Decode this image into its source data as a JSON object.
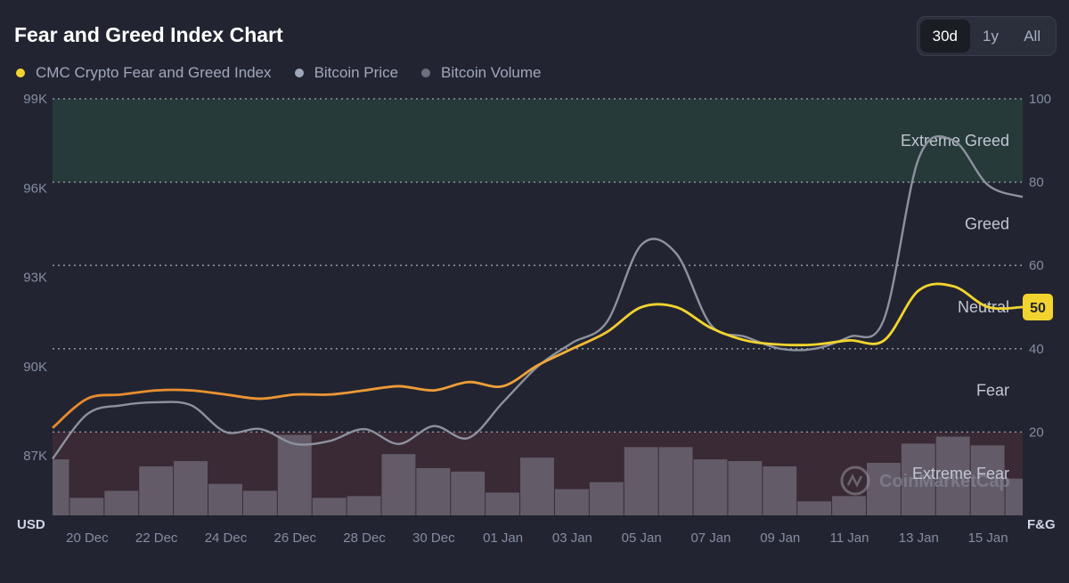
{
  "header": {
    "title": "Fear and Greed Index Chart",
    "ranges": [
      "30d",
      "1y",
      "All"
    ],
    "active_range": "30d"
  },
  "legend": [
    {
      "label": "CMC Crypto Fear and Greed Index",
      "color": "#f3d42f"
    },
    {
      "label": "Bitcoin Price",
      "color": "#a1a7bb"
    },
    {
      "label": "Bitcoin Volume",
      "color": "#6c7080"
    }
  ],
  "watermark": "CoinMarketCap",
  "chart_data": {
    "type": "line",
    "x": [
      "19 Dec",
      "20 Dec",
      "21 Dec",
      "22 Dec",
      "23 Dec",
      "24 Dec",
      "25 Dec",
      "26 Dec",
      "27 Dec",
      "28 Dec",
      "29 Dec",
      "30 Dec",
      "31 Dec",
      "01 Jan",
      "02 Jan",
      "03 Jan",
      "04 Jan",
      "05 Jan",
      "06 Jan",
      "07 Jan",
      "08 Jan",
      "09 Jan",
      "10 Jan",
      "11 Jan",
      "12 Jan",
      "13 Jan",
      "14 Jan",
      "15 Jan",
      "16 Jan"
    ],
    "x_tick_labels": [
      "20 Dec",
      "22 Dec",
      "24 Dec",
      "26 Dec",
      "28 Dec",
      "30 Dec",
      "01 Jan",
      "03 Jan",
      "05 Jan",
      "07 Jan",
      "09 Jan",
      "11 Jan",
      "13 Jan",
      "15 Jan"
    ],
    "y_left": {
      "label": "USD",
      "ticks": [
        "87K",
        "90K",
        "93K",
        "96K",
        "99K"
      ],
      "ylim": [
        85000,
        99000
      ]
    },
    "y_right": {
      "label": "F&G",
      "ticks": [
        20,
        40,
        60,
        80,
        100
      ],
      "ylim": [
        0,
        100
      ]
    },
    "zones": [
      {
        "label": "Extreme Greed",
        "from": 80,
        "to": 100,
        "color": "#263a39"
      },
      {
        "label": "Greed",
        "from": 60,
        "to": 80
      },
      {
        "label": "Neutral",
        "from": 40,
        "to": 60
      },
      {
        "label": "Fear",
        "from": 20,
        "to": 40
      },
      {
        "label": "Extreme Fear",
        "from": 0,
        "to": 20,
        "color": "#3a2a35"
      }
    ],
    "series": [
      {
        "name": "CMC Crypto Fear and Greed Index",
        "axis": "right",
        "values": [
          21,
          28,
          29,
          30,
          30,
          29,
          28,
          29,
          29,
          30,
          31,
          30,
          32,
          31,
          36,
          40,
          44,
          50,
          50,
          45,
          42,
          41,
          41,
          42,
          42,
          54,
          55,
          50,
          50
        ],
        "current_value": 50
      },
      {
        "name": "Bitcoin Price",
        "axis": "left",
        "values": [
          86900,
          88400,
          88700,
          88800,
          88700,
          87800,
          87900,
          87400,
          87500,
          87900,
          87400,
          88000,
          87600,
          88800,
          90000,
          90800,
          91500,
          94100,
          93800,
          91400,
          91000,
          90600,
          90600,
          91000,
          91600,
          97000,
          97600,
          96100,
          95700
        ]
      },
      {
        "name": "Bitcoin Volume",
        "values": [
          32,
          10,
          14,
          28,
          31,
          18,
          14,
          46,
          10,
          11,
          35,
          27,
          25,
          13,
          33,
          15,
          19,
          39,
          39,
          32,
          31,
          28,
          8,
          11,
          30,
          41,
          45,
          40,
          21
        ],
        "unit": "relative"
      }
    ]
  }
}
